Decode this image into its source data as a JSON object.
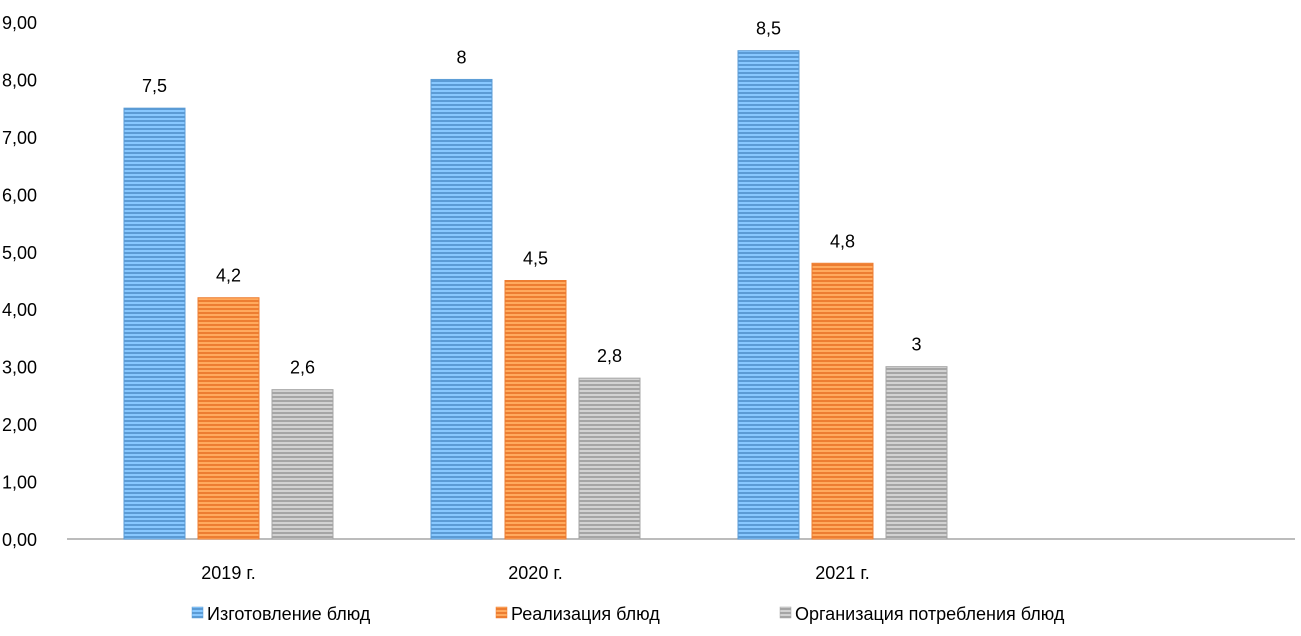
{
  "chart_data": {
    "type": "bar",
    "title": "",
    "xlabel": "",
    "ylabel": "",
    "categories": [
      "2019 г.",
      "2020 г.",
      "2021 г."
    ],
    "series": [
      {
        "name": "Изготовление блюд",
        "values": [
          7.5,
          8,
          8.5
        ],
        "labels": [
          "7,5",
          "8",
          "8,5"
        ],
        "color": "#5b9bd5"
      },
      {
        "name": "Реализация блюд",
        "values": [
          4.2,
          4.5,
          4.8
        ],
        "labels": [
          "4,2",
          "4,5",
          "4,8"
        ],
        "color": "#ed7d31"
      },
      {
        "name": "Организация потребления блюд",
        "values": [
          2.6,
          2.8,
          3
        ],
        "labels": [
          "2,6",
          "2,8",
          "3"
        ],
        "color": "#a5a5a5"
      }
    ],
    "ylim": [
      0,
      9
    ],
    "yticks": [
      "0,00",
      "1,00",
      "2,00",
      "3,00",
      "4,00",
      "5,00",
      "6,00",
      "7,00",
      "8,00",
      "9,00"
    ],
    "grid": false,
    "legend_position": "bottom",
    "bar_fill": "horizontal-striped"
  }
}
